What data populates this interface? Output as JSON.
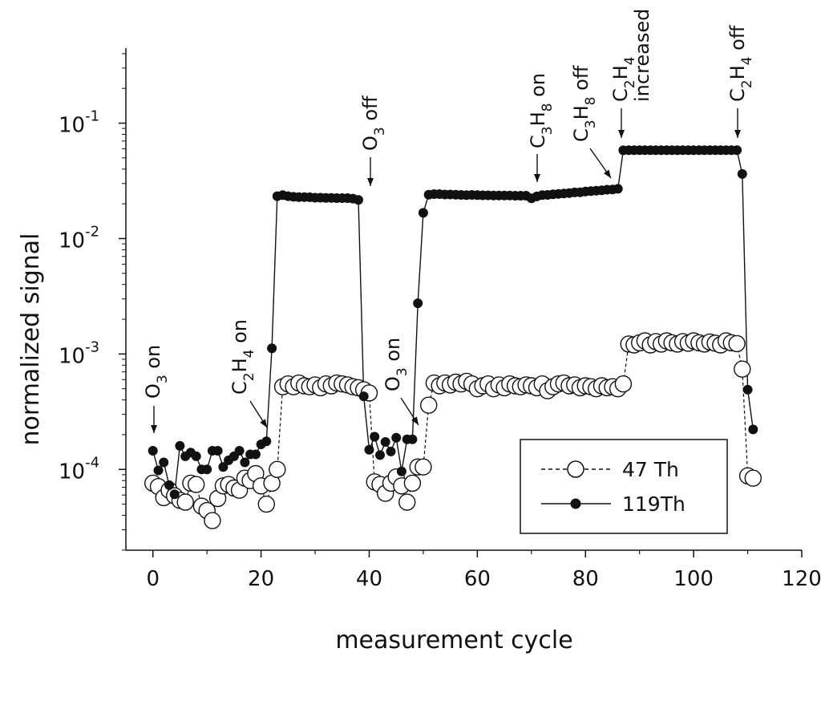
{
  "chart_data": {
    "type": "scatter",
    "xlabel": "measurement cycle",
    "ylabel": "normalized signal",
    "xlim": [
      -5,
      120
    ],
    "ylim_log10": [
      -4.7,
      -0.35
    ],
    "y_scale": "log",
    "x_ticks": [
      0,
      20,
      40,
      60,
      80,
      100,
      120
    ],
    "x_tick_labels": [
      "0",
      "20",
      "40",
      "60",
      "80",
      "100",
      "120"
    ],
    "y_ticks_exp": [
      -4,
      -3,
      -2,
      -1
    ],
    "y_tick_labels": [
      {
        "base": "10",
        "exp": "-4"
      },
      {
        "base": "10",
        "exp": "-3"
      },
      {
        "base": "10",
        "exp": "-2"
      },
      {
        "base": "10",
        "exp": "-1"
      }
    ],
    "legend_position": "bottom-right",
    "series": [
      {
        "name": "47 Th",
        "marker": "open-circle",
        "line": "dashed",
        "x": [
          0,
          1,
          2,
          3,
          4,
          5,
          6,
          7,
          8,
          9,
          10,
          11,
          12,
          13,
          14,
          15,
          16,
          17,
          18,
          19,
          20,
          21,
          22,
          23,
          24,
          25,
          26,
          27,
          28,
          29,
          30,
          31,
          32,
          33,
          34,
          35,
          36,
          37,
          38,
          39,
          40,
          41,
          42,
          43,
          44,
          45,
          46,
          47,
          48,
          49,
          50,
          51,
          52,
          53,
          54,
          55,
          56,
          57,
          58,
          59,
          60,
          61,
          62,
          63,
          64,
          65,
          66,
          67,
          68,
          69,
          70,
          71,
          72,
          73,
          74,
          75,
          76,
          77,
          78,
          79,
          80,
          81,
          82,
          83,
          84,
          85,
          86,
          87,
          88,
          89,
          90,
          91,
          92,
          93,
          94,
          95,
          96,
          97,
          98,
          99,
          100,
          101,
          102,
          103,
          104,
          105,
          106,
          107,
          108,
          109,
          110,
          111
        ],
        "y": [
          7.6e-05,
          7.1e-05,
          5.7e-05,
          6.6e-05,
          5.9e-05,
          5.4e-05,
          5.2e-05,
          7.6e-05,
          7.4e-05,
          4.8e-05,
          4.4e-05,
          3.6e-05,
          5.6e-05,
          7.2e-05,
          7.4e-05,
          6.9e-05,
          6.6e-05,
          8.4e-05,
          8e-05,
          9.2e-05,
          7.2e-05,
          5e-05,
          7.6e-05,
          0.0001,
          0.00052,
          0.00055,
          0.00052,
          0.00056,
          0.00053,
          0.00052,
          0.00054,
          0.00051,
          0.00055,
          0.00053,
          0.00056,
          0.00055,
          0.00054,
          0.00052,
          0.00051,
          0.00049,
          0.00046,
          7.8e-05,
          7.4e-05,
          6.2e-05,
          7.6e-05,
          8.6e-05,
          7.2e-05,
          5.2e-05,
          7.6e-05,
          0.000105,
          0.000105,
          0.00036,
          0.00056,
          0.00053,
          0.00056,
          0.00054,
          0.00057,
          0.00055,
          0.00058,
          0.00055,
          0.0005,
          0.00053,
          0.00055,
          0.0005,
          0.00054,
          0.00051,
          0.00055,
          0.00053,
          0.00052,
          0.00054,
          0.00053,
          0.00051,
          0.00055,
          0.00048,
          0.00052,
          0.00055,
          0.00056,
          0.00053,
          0.00054,
          0.00051,
          0.00053,
          0.00052,
          0.0005,
          0.00053,
          0.00051,
          0.00052,
          0.0005,
          0.00055,
          0.00122,
          0.0012,
          0.00125,
          0.0013,
          0.0012,
          0.00128,
          0.00122,
          0.0013,
          0.00125,
          0.00122,
          0.00128,
          0.00124,
          0.0013,
          0.00125,
          0.00122,
          0.00127,
          0.00124,
          0.0012,
          0.0013,
          0.00125,
          0.00123,
          0.00074,
          8.8e-05,
          8.4e-05
        ]
      },
      {
        "name": "119Th",
        "marker": "filled-circle",
        "line": "solid",
        "x": [
          0,
          1,
          2,
          3,
          4,
          5,
          6,
          7,
          8,
          9,
          10,
          11,
          12,
          13,
          14,
          15,
          16,
          17,
          18,
          19,
          20,
          21,
          22,
          23,
          24,
          25,
          26,
          27,
          28,
          29,
          30,
          31,
          32,
          33,
          34,
          35,
          36,
          37,
          38,
          39,
          40,
          41,
          42,
          43,
          44,
          45,
          46,
          47,
          48,
          49,
          50,
          51,
          52,
          53,
          54,
          55,
          56,
          57,
          58,
          59,
          60,
          61,
          62,
          63,
          64,
          65,
          66,
          67,
          68,
          69,
          70,
          71,
          72,
          73,
          74,
          75,
          76,
          77,
          78,
          79,
          80,
          81,
          82,
          83,
          84,
          85,
          86,
          87,
          88,
          89,
          90,
          91,
          92,
          93,
          94,
          95,
          96,
          97,
          98,
          99,
          100,
          101,
          102,
          103,
          104,
          105,
          106,
          107,
          108,
          109,
          110,
          111
        ],
        "y": [
          0.000145,
          9.8e-05,
          0.000115,
          7.3e-05,
          6.1e-05,
          0.00016,
          0.00013,
          0.00014,
          0.00013,
          0.0001,
          0.0001,
          0.000145,
          0.000145,
          0.000105,
          0.00012,
          0.00013,
          0.000145,
          0.000115,
          0.000135,
          0.000135,
          0.000165,
          0.000175,
          0.00112,
          0.0233,
          0.0238,
          0.0233,
          0.023,
          0.0229,
          0.0229,
          0.0228,
          0.0226,
          0.0226,
          0.0225,
          0.0225,
          0.0224,
          0.0224,
          0.0224,
          0.0222,
          0.0216,
          0.00043,
          0.000148,
          0.000192,
          0.000133,
          0.000173,
          0.000143,
          0.000188,
          9.6e-05,
          0.000182,
          0.000182,
          0.00275,
          0.0167,
          0.024,
          0.0243,
          0.0243,
          0.0241,
          0.0241,
          0.024,
          0.0239,
          0.0238,
          0.0239,
          0.0238,
          0.0237,
          0.0237,
          0.0236,
          0.0236,
          0.0236,
          0.0236,
          0.0235,
          0.0235,
          0.0235,
          0.0223,
          0.0232,
          0.0238,
          0.0239,
          0.0242,
          0.0244,
          0.0246,
          0.0248,
          0.0251,
          0.0252,
          0.0256,
          0.0258,
          0.026,
          0.0262,
          0.0265,
          0.0266,
          0.027,
          0.0582,
          0.0584,
          0.0584,
          0.0584,
          0.0584,
          0.0584,
          0.0584,
          0.0584,
          0.0584,
          0.0584,
          0.0584,
          0.0584,
          0.0584,
          0.0584,
          0.0584,
          0.0584,
          0.0584,
          0.0584,
          0.0584,
          0.0584,
          0.0584,
          0.0584,
          0.0363,
          0.00049,
          0.000222
        ]
      }
    ],
    "annotations": [
      {
        "id": "o3-on-1",
        "parts": [
          {
            "t": "O"
          },
          {
            "t": "3",
            "sub": true
          },
          {
            "t": " on"
          }
        ],
        "x": 0,
        "y_log10": -4.45
      },
      {
        "id": "c2h4-on",
        "parts": [
          {
            "t": "C"
          },
          {
            "t": "2",
            "sub": true
          },
          {
            "t": "H"
          },
          {
            "t": "4",
            "sub": true
          },
          {
            "t": " on"
          }
        ],
        "x": 17,
        "y_log10": -4.1
      },
      {
        "id": "o3-off",
        "parts": [
          {
            "t": "O"
          },
          {
            "t": "3",
            "sub": true
          },
          {
            "t": " off"
          }
        ],
        "x": 40,
        "y_log10": -1.3
      },
      {
        "id": "o3-on-2",
        "parts": [
          {
            "t": "O"
          },
          {
            "t": "3",
            "sub": true
          },
          {
            "t": " on"
          }
        ],
        "x": 47,
        "y_log10": -4.1
      },
      {
        "id": "c3h8-on",
        "parts": [
          {
            "t": "C"
          },
          {
            "t": "3",
            "sub": true
          },
          {
            "t": "H"
          },
          {
            "t": "8",
            "sub": true
          },
          {
            "t": " on"
          }
        ],
        "x": 71,
        "y_log10": -1.3
      },
      {
        "id": "c3h8-off",
        "parts": [
          {
            "t": "C"
          },
          {
            "t": "3",
            "sub": true
          },
          {
            "t": "H"
          },
          {
            "t": "8",
            "sub": true
          },
          {
            "t": " off"
          }
        ],
        "x": 84,
        "y_log10": -1.5
      },
      {
        "id": "c2h4-increased",
        "parts": [
          {
            "t": "C"
          },
          {
            "t": "2",
            "sub": true
          },
          {
            "t": "H"
          },
          {
            "t": "4",
            "sub": true
          }
        ],
        "extra_line": "increased",
        "x": 86,
        "y_log10": -1.3
      },
      {
        "id": "c2h4-off",
        "parts": [
          {
            "t": "C"
          },
          {
            "t": "2",
            "sub": true
          },
          {
            "t": "H"
          },
          {
            "t": "4",
            "sub": true
          },
          {
            "t": " off"
          }
        ],
        "x": 108,
        "y_log10": -1.3
      }
    ]
  }
}
